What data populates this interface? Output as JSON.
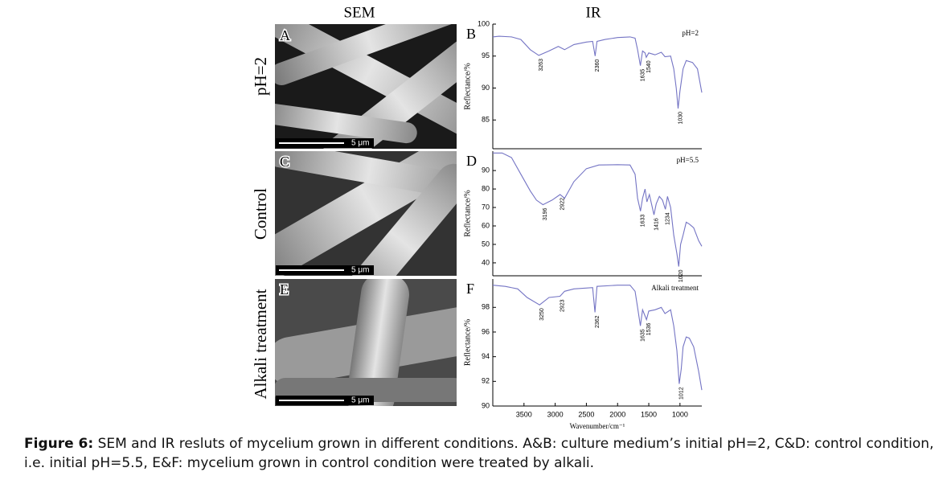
{
  "headers": {
    "sem": "SEM",
    "ir": "IR"
  },
  "row_labels": [
    "pH=2",
    "Control",
    "Alkali treatment"
  ],
  "sem_panels": [
    {
      "letter": "A",
      "scale": "5 μm"
    },
    {
      "letter": "C",
      "scale": "5 μm"
    },
    {
      "letter": "E",
      "scale": "5 μm"
    }
  ],
  "chart_data": [
    {
      "type": "line",
      "label": "B",
      "annotation": "pH=2",
      "ylabel": "Reflectance/%",
      "color": "#7474c4",
      "x": [
        4000,
        3900,
        3700,
        3550,
        3400,
        3263,
        3100,
        2950,
        2850,
        2700,
        2500,
        2400,
        2360,
        2330,
        2200,
        2000,
        1800,
        1720,
        1680,
        1635,
        1600,
        1560,
        1540,
        1500,
        1400,
        1300,
        1240,
        1150,
        1100,
        1060,
        1030,
        1000,
        950,
        900,
        800,
        720,
        650
      ],
      "values": [
        98,
        98.1,
        98,
        97.6,
        96,
        95.1,
        95.8,
        96.5,
        96,
        96.8,
        97.2,
        97.3,
        95,
        97.3,
        97.6,
        97.9,
        98,
        97.8,
        96,
        93.5,
        95.8,
        95.5,
        94.8,
        95.5,
        95.2,
        95.6,
        94.9,
        95,
        93,
        90,
        86.8,
        89.5,
        93,
        94.3,
        94,
        93,
        89.3
      ],
      "peaks": [
        3263,
        2360,
        1635,
        1540,
        1030
      ],
      "xlim": [
        4000,
        650
      ],
      "ylim": [
        80.5,
        100
      ],
      "yticks": [
        85,
        90,
        95,
        100
      ]
    },
    {
      "type": "line",
      "label": "D",
      "annotation": "pH=5.5",
      "ylabel": "Reflectance/%",
      "color": "#7474c4",
      "x": [
        4000,
        3850,
        3700,
        3550,
        3400,
        3300,
        3196,
        3050,
        2922,
        2850,
        2700,
        2500,
        2300,
        2000,
        1800,
        1720,
        1680,
        1633,
        1600,
        1560,
        1530,
        1490,
        1416,
        1380,
        1330,
        1280,
        1234,
        1200,
        1150,
        1100,
        1050,
        1020,
        990,
        950,
        900,
        850,
        780,
        700,
        650
      ],
      "values": [
        99.5,
        99.5,
        97,
        88,
        79,
        74,
        71.5,
        74,
        77,
        75,
        84,
        91,
        93,
        93.2,
        93,
        88,
        75,
        68,
        75,
        80,
        73,
        77,
        66,
        72,
        76,
        74,
        69,
        76,
        70,
        55,
        45,
        38,
        50,
        55,
        62,
        61,
        59,
        52,
        49
      ],
      "peaks": [
        3196,
        2922,
        1633,
        1416,
        1234,
        1020
      ],
      "xlim": [
        4000,
        650
      ],
      "ylim": [
        33,
        100.5
      ],
      "yticks": [
        40,
        50,
        60,
        70,
        80,
        90
      ]
    },
    {
      "type": "line",
      "label": "F",
      "annotation": "Alkali treatment",
      "ylabel": "Reflectance/%",
      "xlabel": "Wavenumber/cm⁻¹",
      "color": "#7474c4",
      "x": [
        4000,
        3800,
        3600,
        3450,
        3250,
        3100,
        2923,
        2850,
        2700,
        2400,
        2362,
        2330,
        2000,
        1800,
        1720,
        1680,
        1635,
        1600,
        1560,
        1536,
        1500,
        1400,
        1300,
        1240,
        1150,
        1100,
        1050,
        1012,
        980,
        950,
        900,
        850,
        780,
        700,
        650
      ],
      "values": [
        99.8,
        99.7,
        99.5,
        98.8,
        98.2,
        98.8,
        98.9,
        99.3,
        99.5,
        99.6,
        97.6,
        99.7,
        99.8,
        99.8,
        99.3,
        98,
        96.5,
        97.8,
        97.3,
        97,
        97.7,
        97.8,
        98,
        97.5,
        97.8,
        96.5,
        94.5,
        91.8,
        93,
        94.8,
        95.6,
        95.5,
        94.8,
        92.8,
        91.3
      ],
      "peaks": [
        3250,
        2923,
        2362,
        1635,
        1536,
        1012
      ],
      "xlim": [
        4000,
        650
      ],
      "ylim": [
        90,
        100.3
      ],
      "yticks": [
        90,
        92,
        94,
        96,
        98
      ],
      "xticks": [
        3500,
        3000,
        2500,
        2000,
        1500,
        1000
      ]
    }
  ],
  "caption": {
    "label": "Figure 6:",
    "text": "SEM and IR resluts of mycelium grown in different conditions. A&B: culture medium’s initial pH=2, C&D: control condition, i.e. initial pH=5.5, E&F: mycelium grown in control condition were treated by alkali."
  }
}
